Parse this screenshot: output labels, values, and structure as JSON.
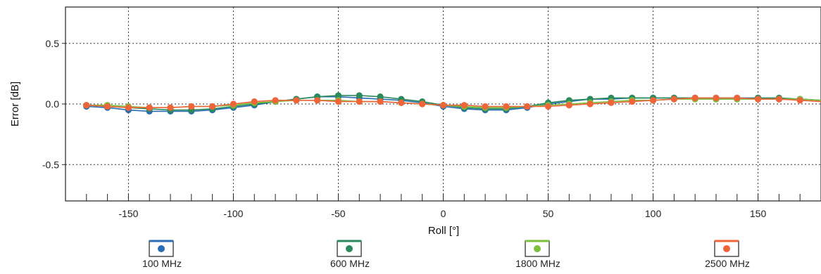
{
  "chart_data": {
    "type": "line",
    "xlabel": "Roll [°]",
    "ylabel": "Error [dB]",
    "xlim": [
      -180,
      180
    ],
    "ylim": [
      -0.8,
      0.8
    ],
    "xticks": [
      -150,
      -100,
      -50,
      0,
      50,
      100,
      150
    ],
    "xtick_labels": [
      "-150",
      "-100",
      "-50",
      "0",
      "50",
      "100",
      "150"
    ],
    "yticks": [
      0.5,
      0.0,
      -0.5
    ],
    "ytick_labels": [
      "0.5",
      "0.0",
      "-0.5"
    ],
    "grid": true,
    "legend_position": "bottom",
    "x": [
      -170,
      -160,
      -150,
      -140,
      -130,
      -120,
      -110,
      -100,
      -90,
      -80,
      -70,
      -60,
      -50,
      -40,
      -30,
      -20,
      -10,
      0,
      10,
      20,
      30,
      40,
      50,
      60,
      70,
      80,
      90,
      100,
      110,
      120,
      130,
      140,
      150,
      160,
      170,
      180
    ],
    "series": [
      {
        "name": "100 MHz",
        "color": "#2a6db3",
        "values": [
          -0.02,
          -0.03,
          -0.05,
          -0.06,
          -0.06,
          -0.06,
          -0.05,
          -0.03,
          -0.01,
          0.02,
          0.04,
          0.06,
          0.06,
          0.05,
          0.04,
          0.03,
          0.01,
          -0.02,
          -0.04,
          -0.05,
          -0.05,
          -0.03,
          0.0,
          0.02,
          0.04,
          0.04,
          0.05,
          0.05,
          0.05,
          0.05,
          0.05,
          0.05,
          0.05,
          0.04,
          0.04,
          0.03
        ]
      },
      {
        "name": "600 MHz",
        "color": "#2a8a5c",
        "values": [
          -0.01,
          -0.02,
          -0.03,
          -0.04,
          -0.05,
          -0.05,
          -0.04,
          -0.02,
          0.0,
          0.02,
          0.04,
          0.06,
          0.07,
          0.07,
          0.06,
          0.04,
          0.02,
          -0.01,
          -0.03,
          -0.04,
          -0.04,
          -0.02,
          0.01,
          0.03,
          0.04,
          0.05,
          0.05,
          0.05,
          0.05,
          0.05,
          0.04,
          0.04,
          0.05,
          0.05,
          0.04,
          0.03
        ]
      },
      {
        "name": "1800 MHz",
        "color": "#7cbf3a",
        "values": [
          -0.01,
          -0.01,
          -0.02,
          -0.03,
          -0.03,
          -0.02,
          -0.02,
          -0.01,
          0.01,
          0.02,
          0.03,
          0.03,
          0.03,
          0.02,
          0.02,
          0.01,
          0.0,
          -0.01,
          -0.02,
          -0.03,
          -0.03,
          -0.02,
          -0.01,
          0.0,
          0.01,
          0.02,
          0.03,
          0.03,
          0.04,
          0.04,
          0.04,
          0.04,
          0.04,
          0.04,
          0.04,
          0.03
        ]
      },
      {
        "name": "2500 MHz",
        "color": "#f0643a",
        "values": [
          -0.01,
          -0.02,
          -0.03,
          -0.03,
          -0.03,
          -0.02,
          -0.02,
          0.0,
          0.02,
          0.03,
          0.03,
          0.03,
          0.02,
          0.02,
          0.02,
          0.01,
          0.0,
          -0.01,
          -0.01,
          -0.02,
          -0.02,
          -0.02,
          -0.02,
          -0.01,
          0.0,
          0.01,
          0.02,
          0.03,
          0.04,
          0.05,
          0.05,
          0.05,
          0.04,
          0.04,
          0.03,
          0.02
        ]
      }
    ]
  }
}
